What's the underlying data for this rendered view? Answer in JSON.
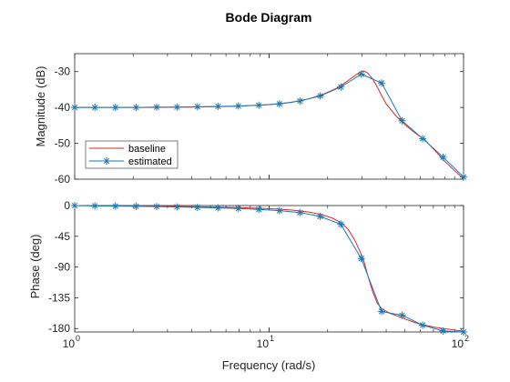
{
  "figure": {
    "title": "Bode Diagram",
    "xlabel": "Frequency (rad/s)",
    "xtick_base": "10",
    "xtick_exponents": [
      "0",
      "1",
      "2"
    ]
  },
  "chart_data": [
    {
      "type": "line",
      "panel": "magnitude",
      "ylabel": "Magnitude (dB)",
      "xscale": "log",
      "xlim": [
        1,
        100
      ],
      "ylim": [
        -60,
        -25
      ],
      "yticks": [
        -60,
        -50,
        -40,
        -30
      ],
      "ytick_labels": [
        "-60",
        "-50",
        "-40",
        "-30"
      ],
      "grid": false,
      "legend": {
        "placement": "bottom-left",
        "entries": [
          "baseline",
          "estimated"
        ]
      },
      "series": [
        {
          "name": "baseline",
          "color": "#d62728",
          "marker": "none",
          "x": [
            1,
            1.58,
            2.51,
            3.98,
            6.31,
            10,
            13,
            16,
            19,
            22,
            25,
            27,
            29,
            30.5,
            32,
            34,
            36,
            38,
            40,
            45,
            50,
            56,
            63,
            71,
            79,
            89,
            100
          ],
          "y": [
            -40,
            -40,
            -40,
            -39.9,
            -39.7,
            -39.2,
            -38.6,
            -37.6,
            -36.3,
            -34.8,
            -32.8,
            -31.5,
            -30.3,
            -29.8,
            -30.3,
            -32.0,
            -34.3,
            -36.8,
            -39.0,
            -42.4,
            -44.8,
            -47.0,
            -49.0,
            -51.9,
            -54.7,
            -57.4,
            -59.9
          ]
        },
        {
          "name": "estimated",
          "color": "#1f77b4",
          "marker": "asterisk",
          "x": [
            1,
            1.27,
            1.62,
            2.07,
            2.64,
            3.36,
            4.28,
            5.46,
            6.95,
            8.86,
            11.3,
            14.4,
            18.3,
            23.4,
            29.8,
            37.9,
            48.3,
            61.6,
            78.5,
            100
          ],
          "y": [
            -40,
            -40,
            -40,
            -40,
            -39.9,
            -39.9,
            -39.8,
            -39.7,
            -39.6,
            -39.4,
            -39.0,
            -38.2,
            -36.8,
            -34.3,
            -30.7,
            -33.2,
            -43.7,
            -48.7,
            -53.9,
            -59.4
          ]
        }
      ]
    },
    {
      "type": "line",
      "panel": "phase",
      "ylabel": "Phase (deg)",
      "xscale": "log",
      "xlim": [
        1,
        100
      ],
      "ylim": [
        -185,
        0
      ],
      "yticks": [
        -180,
        -135,
        -90,
        -45,
        0
      ],
      "ytick_labels": [
        "-180",
        "-135",
        "-90",
        "-45",
        "0"
      ],
      "grid": false,
      "series": [
        {
          "name": "baseline",
          "color": "#d62728",
          "marker": "none",
          "x": [
            1,
            1.58,
            2.51,
            3.98,
            6.31,
            10,
            13,
            16,
            18.5,
            21,
            23.5,
            25.5,
            27.5,
            29,
            30.5,
            32,
            34,
            36,
            38,
            42,
            46,
            50,
            56,
            63,
            71,
            79,
            89,
            100
          ],
          "y": [
            0,
            -0.6,
            -1,
            -1.6,
            -2.7,
            -4.5,
            -6.5,
            -9.5,
            -13,
            -18,
            -25,
            -35,
            -50,
            -64,
            -78,
            -100,
            -125,
            -143,
            -151,
            -158,
            -162,
            -166,
            -171,
            -175,
            -178,
            -180,
            -182,
            -184
          ]
        },
        {
          "name": "estimated",
          "color": "#1f77b4",
          "marker": "asterisk",
          "x": [
            1,
            1.27,
            1.62,
            2.07,
            2.64,
            3.36,
            4.28,
            5.46,
            6.95,
            8.86,
            11.3,
            14.4,
            18.3,
            23.4,
            29.8,
            37.9,
            48.3,
            61.6,
            78.5,
            100
          ],
          "y": [
            0,
            -0.5,
            -0.8,
            -1.1,
            -1.5,
            -2,
            -2.7,
            -3.4,
            -4.3,
            -5.6,
            -7.4,
            -10.3,
            -15.9,
            -27.5,
            -77.5,
            -155,
            -160.5,
            -175,
            -183.5,
            -185
          ]
        }
      ]
    }
  ]
}
